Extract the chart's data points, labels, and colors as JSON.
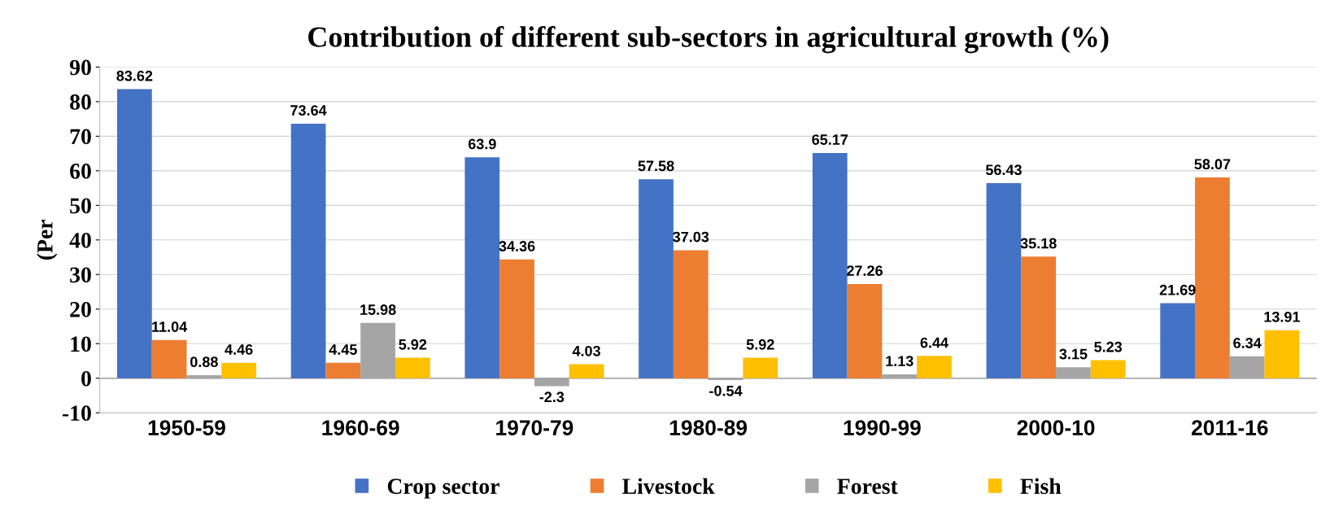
{
  "chart_data": {
    "type": "bar",
    "title": "Contribution of different sub-sectors in agricultural growth (%)",
    "ylabel": "(Per",
    "categories": [
      "1950-59",
      "1960-69",
      "1970-79",
      "1980-89",
      "1990-99",
      "2000-10",
      "2011-16"
    ],
    "series": [
      {
        "name": "Crop sector",
        "color": "#4472c4",
        "values": [
          83.62,
          73.64,
          63.9,
          57.58,
          65.17,
          56.43,
          21.69
        ]
      },
      {
        "name": "Livestock",
        "color": "#ed7d31",
        "values": [
          11.04,
          4.45,
          34.36,
          37.03,
          27.26,
          35.18,
          58.07
        ]
      },
      {
        "name": "Forest",
        "color": "#a5a5a5",
        "values": [
          0.88,
          15.98,
          -2.3,
          -0.54,
          1.13,
          3.15,
          6.34
        ]
      },
      {
        "name": "Fish",
        "color": "#ffc000",
        "values": [
          4.46,
          5.92,
          4.03,
          5.92,
          6.44,
          5.23,
          13.91
        ]
      }
    ],
    "ylim": [
      -10,
      90
    ],
    "yticks": [
      -10,
      0,
      10,
      20,
      30,
      40,
      50,
      60,
      70,
      80,
      90
    ],
    "grid": "y",
    "legend": "bottom",
    "data_labels": true
  }
}
